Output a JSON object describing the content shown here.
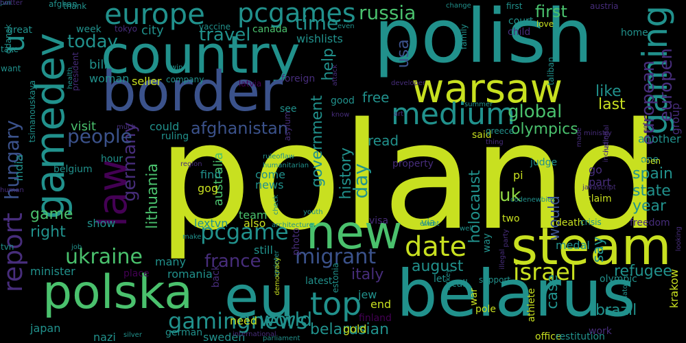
{
  "palette": {
    "background": "#000000",
    "yellow": "#c8e020",
    "lime": "#8fd744",
    "green": "#4ac16d",
    "teal": "#21918c",
    "blue": "#3b528b",
    "indigo": "#472d7b",
    "purple": "#440154"
  },
  "words": [
    {
      "text": "poland",
      "color": "yellow"
    },
    {
      "text": "polish",
      "color": "teal"
    },
    {
      "text": "belarus",
      "color": "teal"
    },
    {
      "text": "country",
      "color": "teal"
    },
    {
      "text": "border",
      "color": "blue"
    },
    {
      "text": "steam",
      "color": "yellow"
    },
    {
      "text": "eu",
      "color": "teal"
    },
    {
      "text": "polska",
      "color": "green"
    },
    {
      "text": "new",
      "color": "green"
    },
    {
      "text": "gamedev",
      "color": "teal"
    },
    {
      "text": "warsaw",
      "color": "yellow"
    },
    {
      "text": "law",
      "color": "purple"
    },
    {
      "text": "gaming",
      "color": "teal"
    },
    {
      "text": "top",
      "color": "teal"
    },
    {
      "text": "medium",
      "color": "teal"
    },
    {
      "text": "date",
      "color": "yellow"
    },
    {
      "text": "report",
      "color": "indigo"
    },
    {
      "text": "europe",
      "color": "teal"
    },
    {
      "text": "pcgames",
      "color": "teal"
    },
    {
      "text": "u",
      "color": "teal"
    },
    {
      "text": "gamingnews",
      "color": "teal"
    },
    {
      "text": "pcgame",
      "color": "teal"
    },
    {
      "text": "migrant",
      "color": "blue"
    },
    {
      "text": "israel",
      "color": "yellow"
    },
    {
      "text": "ukraine",
      "color": "green"
    },
    {
      "text": "hungary",
      "color": "blue"
    },
    {
      "text": "france",
      "color": "indigo"
    },
    {
      "text": "world",
      "color": "teal"
    },
    {
      "text": "europen",
      "color": "indigo"
    },
    {
      "text": "european",
      "color": "indigo"
    },
    {
      "text": "germany",
      "color": "indigo"
    },
    {
      "text": "russia",
      "color": "green"
    },
    {
      "text": "time",
      "color": "teal"
    },
    {
      "text": "people",
      "color": "blue"
    },
    {
      "text": "global",
      "color": "green"
    },
    {
      "text": "today",
      "color": "teal"
    },
    {
      "text": "travel",
      "color": "teal"
    },
    {
      "text": "first",
      "color": "green"
    },
    {
      "text": "olympics",
      "color": "green"
    },
    {
      "text": "afghanistan",
      "color": "blue"
    },
    {
      "text": "lithuania",
      "color": "green"
    },
    {
      "text": "holocaust",
      "color": "teal"
    },
    {
      "text": "day",
      "color": "teal"
    },
    {
      "text": "usa",
      "color": "blue"
    },
    {
      "text": "history",
      "color": "teal"
    },
    {
      "text": "government",
      "color": "teal"
    },
    {
      "text": "help",
      "color": "teal"
    },
    {
      "text": "refugee",
      "color": "teal"
    },
    {
      "text": "august",
      "color": "teal"
    },
    {
      "text": "belarusian",
      "color": "teal"
    },
    {
      "text": "would",
      "color": "blue"
    },
    {
      "text": "spain",
      "color": "teal"
    },
    {
      "text": "state",
      "color": "teal"
    },
    {
      "text": "year",
      "color": "teal"
    },
    {
      "text": "brazil",
      "color": "teal"
    },
    {
      "text": "italy",
      "color": "indigo"
    },
    {
      "text": "say",
      "color": "teal"
    },
    {
      "text": "case",
      "color": "teal"
    },
    {
      "text": "uk",
      "color": "lime"
    },
    {
      "text": "india",
      "color": "teal"
    },
    {
      "text": "game",
      "color": "green"
    },
    {
      "text": "right",
      "color": "teal"
    },
    {
      "text": "free",
      "color": "teal"
    },
    {
      "text": "read",
      "color": "teal"
    },
    {
      "text": "like",
      "color": "teal"
    },
    {
      "text": "last",
      "color": "yellow"
    },
    {
      "text": "bill",
      "color": "teal"
    },
    {
      "text": "woman",
      "color": "teal"
    },
    {
      "text": "city",
      "color": "teal"
    },
    {
      "text": "visit",
      "color": "green"
    },
    {
      "text": "show",
      "color": "teal"
    },
    {
      "text": "australia",
      "color": "green"
    },
    {
      "text": "lextvn",
      "color": "teal"
    },
    {
      "text": "team",
      "color": "green"
    },
    {
      "text": "also",
      "color": "yellow"
    },
    {
      "text": "news",
      "color": "teal"
    },
    {
      "text": "come",
      "color": "teal"
    },
    {
      "text": "find",
      "color": "teal"
    },
    {
      "text": "gog",
      "color": "yellow"
    },
    {
      "text": "still",
      "color": "teal"
    },
    {
      "text": "many",
      "color": "teal"
    },
    {
      "text": "romania",
      "color": "teal"
    },
    {
      "text": "minister",
      "color": "teal"
    },
    {
      "text": "japan",
      "color": "teal"
    },
    {
      "text": "sweden",
      "color": "teal"
    },
    {
      "text": "need",
      "color": "yellow"
    },
    {
      "text": "nazi",
      "color": "teal"
    },
    {
      "text": "gold",
      "color": "yellow"
    },
    {
      "text": "end",
      "color": "yellow"
    },
    {
      "text": "jew",
      "color": "teal"
    },
    {
      "text": "visa",
      "color": "indigo"
    },
    {
      "text": "medal",
      "color": "teal"
    },
    {
      "text": "olympic",
      "color": "teal"
    },
    {
      "text": "two",
      "color": "yellow"
    },
    {
      "text": "call",
      "color": "teal"
    },
    {
      "text": "let",
      "color": "teal"
    },
    {
      "text": "via",
      "color": "teal"
    },
    {
      "text": "pi",
      "color": "yellow"
    },
    {
      "text": "go",
      "color": "indigo"
    },
    {
      "text": "part",
      "color": "indigo"
    },
    {
      "text": "said",
      "color": "yellow"
    },
    {
      "text": "judge",
      "color": "teal"
    },
    {
      "text": "court",
      "color": "teal"
    },
    {
      "text": "child",
      "color": "indigo"
    },
    {
      "text": "family",
      "color": "teal"
    },
    {
      "text": "home",
      "color": "teal"
    },
    {
      "text": "love",
      "color": "yellow"
    },
    {
      "text": "group",
      "color": "indigo"
    },
    {
      "text": "another",
      "color": "teal"
    },
    {
      "text": "freedom",
      "color": "indigo"
    },
    {
      "text": "work",
      "color": "indigo"
    },
    {
      "text": "krakow",
      "color": "yellow"
    },
    {
      "text": "wishlists",
      "color": "teal"
    },
    {
      "text": "canada",
      "color": "green"
    },
    {
      "text": "seller",
      "color": "yellow"
    },
    {
      "text": "company",
      "color": "teal"
    },
    {
      "text": "foreign",
      "color": "indigo"
    },
    {
      "text": "latvia",
      "color": "purple"
    },
    {
      "text": "could",
      "color": "teal"
    },
    {
      "text": "ruling",
      "color": "teal"
    },
    {
      "text": "hour",
      "color": "teal"
    },
    {
      "text": "belgium",
      "color": "teal"
    },
    {
      "text": "week",
      "color": "teal"
    },
    {
      "text": "great",
      "color": "teal"
    },
    {
      "text": "take",
      "color": "teal"
    },
    {
      "text": "want",
      "color": "teal"
    },
    {
      "text": "tvn",
      "color": "teal"
    },
    {
      "text": "afghan",
      "color": "teal"
    },
    {
      "text": "president",
      "color": "indigo"
    },
    {
      "text": "tsimanouskaya",
      "color": "teal"
    },
    {
      "text": "property",
      "color": "indigo"
    },
    {
      "text": "one",
      "color": "teal"
    },
    {
      "text": "open",
      "color": "yellow"
    },
    {
      "text": "death",
      "color": "yellow"
    },
    {
      "text": "crisis",
      "color": "teal"
    },
    {
      "text": "claim",
      "color": "yellow"
    },
    {
      "text": "support",
      "color": "teal"
    },
    {
      "text": "way",
      "color": "teal"
    },
    {
      "text": "greece",
      "color": "teal"
    },
    {
      "text": "photo",
      "color": "indigo"
    },
    {
      "text": "latest",
      "color": "teal"
    },
    {
      "text": "estonia",
      "color": "teal"
    },
    {
      "text": "place",
      "color": "purple"
    },
    {
      "text": "german",
      "color": "teal"
    },
    {
      "text": "back",
      "color": "indigo"
    },
    {
      "text": "athlete",
      "color": "yellow"
    },
    {
      "text": "pole",
      "color": "yellow"
    },
    {
      "text": "office",
      "color": "yellow"
    },
    {
      "text": "war",
      "color": "yellow"
    },
    {
      "text": "restitution",
      "color": "teal"
    },
    {
      "text": "finland",
      "color": "purple"
    },
    {
      "text": "good",
      "color": "teal"
    },
    {
      "text": "see",
      "color": "teal"
    },
    {
      "text": "asylum",
      "color": "indigo"
    },
    {
      "text": "first",
      "color": "teal"
    },
    {
      "text": "tokyo",
      "color": "indigo"
    },
    {
      "text": "thank",
      "color": "teal"
    },
    {
      "text": "vaccine",
      "color": "teal"
    },
    {
      "text": "gdansk",
      "color": "teal"
    },
    {
      "text": "change",
      "color": "teal"
    },
    {
      "text": "austria",
      "color": "indigo"
    },
    {
      "text": "taliban",
      "color": "teal"
    },
    {
      "text": "get",
      "color": "indigo"
    },
    {
      "text": "including",
      "color": "indigo"
    },
    {
      "text": "ministry",
      "color": "indigo"
    },
    {
      "text": "national",
      "color": "indigo"
    },
    {
      "text": "ruleoflaw",
      "color": "teal"
    },
    {
      "text": "humanitarian",
      "color": "teal"
    },
    {
      "text": "check",
      "color": "teal"
    },
    {
      "text": "know",
      "color": "indigo"
    },
    {
      "text": "architecture",
      "color": "teal"
    },
    {
      "text": "make",
      "color": "teal"
    },
    {
      "text": "job",
      "color": "teal"
    },
    {
      "text": "event",
      "color": "teal"
    },
    {
      "text": "well",
      "color": "teal"
    },
    {
      "text": "party",
      "color": "indigo"
    },
    {
      "text": "illegal",
      "color": "indigo"
    },
    {
      "text": "turkey",
      "color": "teal"
    },
    {
      "text": "nato",
      "color": "teal"
    },
    {
      "text": "sprinter",
      "color": "teal"
    },
    {
      "text": "democracy",
      "color": "yellow"
    },
    {
      "text": "parliament",
      "color": "teal"
    },
    {
      "text": "silver",
      "color": "teal"
    },
    {
      "text": "international",
      "color": "indigo"
    },
    {
      "text": "youth",
      "color": "teal"
    },
    {
      "text": "region",
      "color": "indigo"
    },
    {
      "text": "much",
      "color": "indigo"
    },
    {
      "text": "human",
      "color": "indigo"
    },
    {
      "text": "health",
      "color": "teal"
    },
    {
      "text": "win",
      "color": "teal"
    },
    {
      "text": "developer",
      "color": "indigo"
    },
    {
      "text": "attack",
      "color": "indigo"
    },
    {
      "text": "even",
      "color": "teal"
    },
    {
      "text": "summer",
      "color": "teal"
    },
    {
      "text": "thing",
      "color": "indigo"
    },
    {
      "text": "codenewbies",
      "color": "teal"
    },
    {
      "text": "javascript",
      "color": "indigo"
    },
    {
      "text": "looking",
      "color": "indigo"
    },
    {
      "text": "art",
      "color": "indigo"
    },
    {
      "text": "made",
      "color": "indigo"
    },
    {
      "text": "pm",
      "color": "teal"
    },
    {
      "text": "twitter",
      "color": "indigo"
    }
  ]
}
